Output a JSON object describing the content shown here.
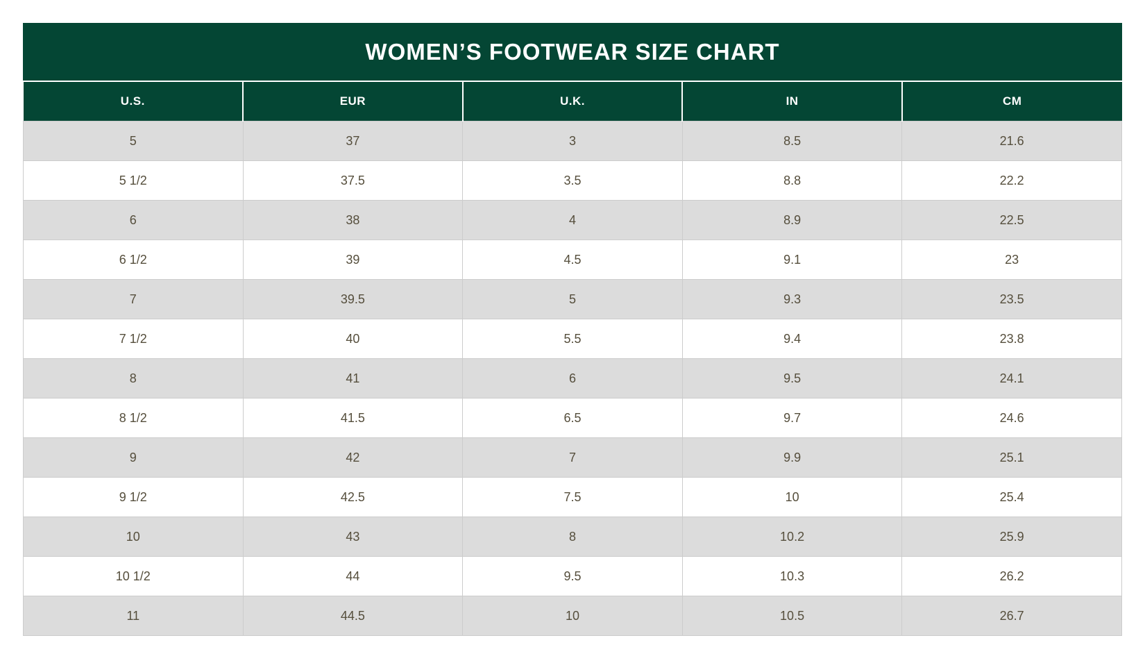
{
  "title": "WOMEN’S FOOTWEAR SIZE CHART",
  "colors": {
    "header_green": "#044634",
    "alt_row_gray": "#dcdcdc",
    "row_white": "#ffffff",
    "cell_border": "#cccccc",
    "body_text": "#554e3c",
    "header_text": "#ffffff"
  },
  "chart_data": {
    "type": "table",
    "title": "WOMEN’S FOOTWEAR SIZE CHART",
    "columns": [
      "U.S.",
      "EUR",
      "U.K.",
      "IN",
      "CM"
    ],
    "rows": [
      [
        "5",
        "37",
        "3",
        "8.5",
        "21.6"
      ],
      [
        "5 1/2",
        "37.5",
        "3.5",
        "8.8",
        "22.2"
      ],
      [
        "6",
        "38",
        "4",
        "8.9",
        "22.5"
      ],
      [
        "6 1/2",
        "39",
        "4.5",
        "9.1",
        "23"
      ],
      [
        "7",
        "39.5",
        "5",
        "9.3",
        "23.5"
      ],
      [
        "7 1/2",
        "40",
        "5.5",
        "9.4",
        "23.8"
      ],
      [
        "8",
        "41",
        "6",
        "9.5",
        "24.1"
      ],
      [
        "8 1/2",
        "41.5",
        "6.5",
        "9.7",
        "24.6"
      ],
      [
        "9",
        "42",
        "7",
        "9.9",
        "25.1"
      ],
      [
        "9 1/2",
        "42.5",
        "7.5",
        "10",
        "25.4"
      ],
      [
        "10",
        "43",
        "8",
        "10.2",
        "25.9"
      ],
      [
        "10 1/2",
        "44",
        "9.5",
        "10.3",
        "26.2"
      ],
      [
        "11",
        "44.5",
        "10",
        "10.5",
        "26.7"
      ]
    ],
    "layout": {
      "zebra_striping": true,
      "first_data_row_shaded": true,
      "text_alignment": "center"
    }
  }
}
